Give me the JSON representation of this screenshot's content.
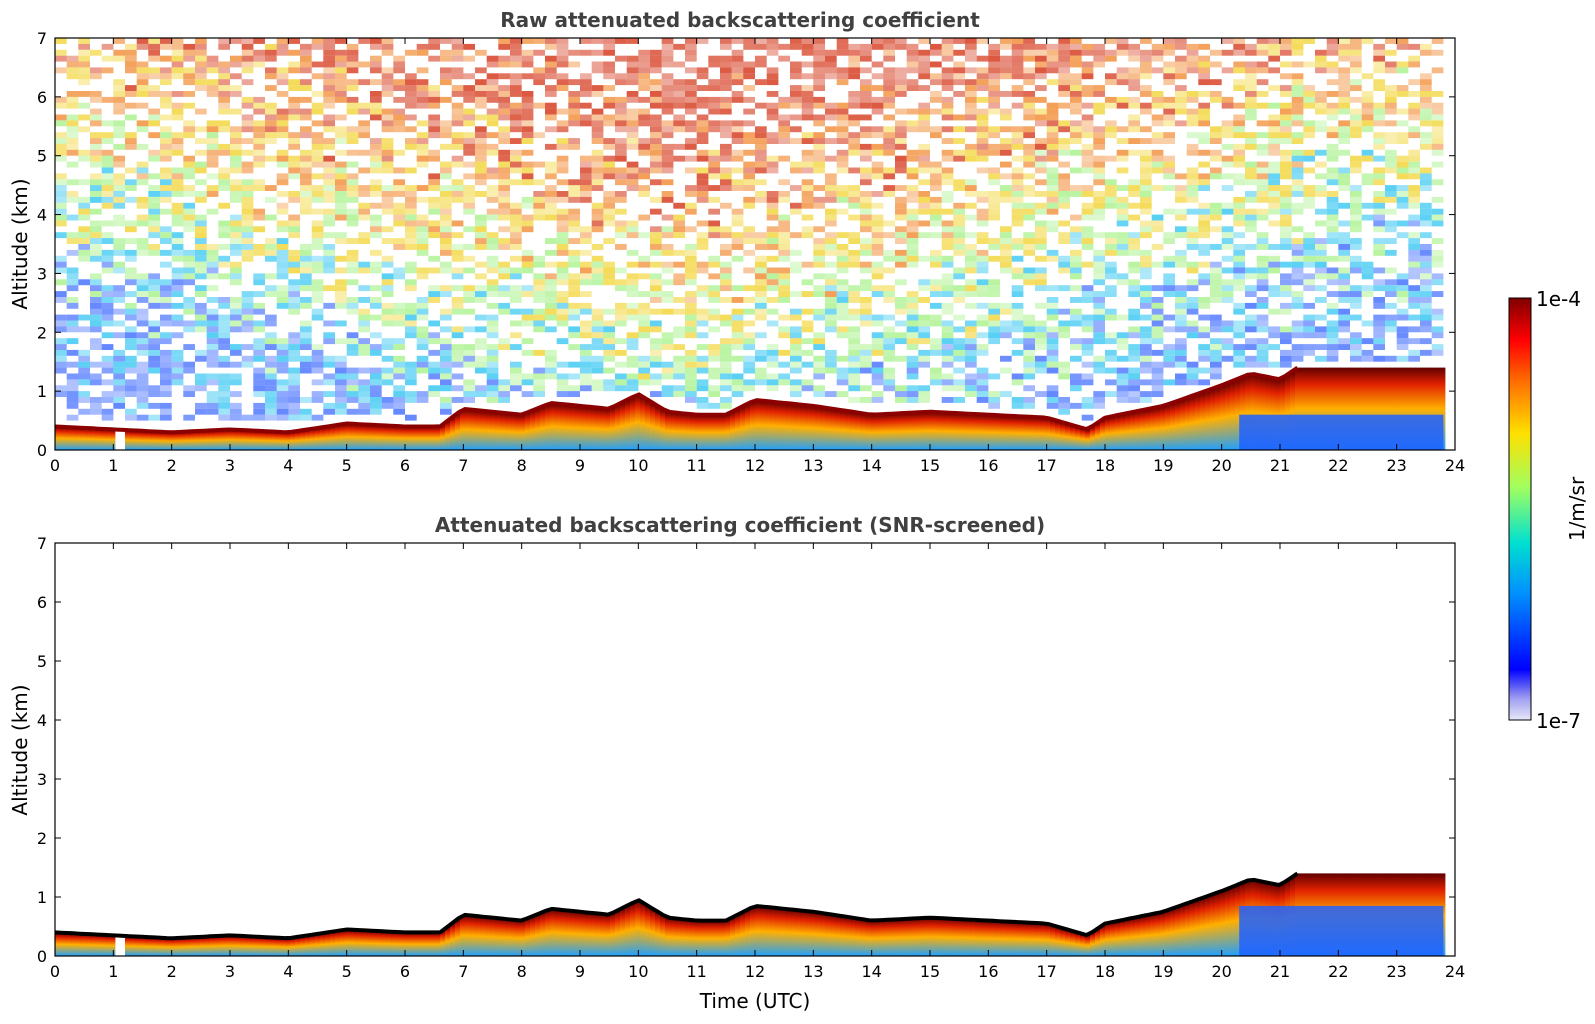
{
  "chart_data": [
    {
      "type": "heatmap",
      "title": "Raw attenuated backscattering coefficient",
      "xlabel": "",
      "ylabel": "Altitude (km)",
      "xlim": [
        0,
        24
      ],
      "ylim": [
        0,
        7
      ],
      "xticks": [
        "0",
        "1",
        "2",
        "3",
        "4",
        "5",
        "6",
        "7",
        "8",
        "9",
        "10",
        "11",
        "12",
        "13",
        "14",
        "15",
        "16",
        "17",
        "18",
        "19",
        "20",
        "21",
        "22",
        "23",
        "24"
      ],
      "yticks": [
        "0",
        "1",
        "2",
        "3",
        "4",
        "5",
        "6",
        "7"
      ],
      "boundary_layer_top_km": {
        "time_utc": [
          0,
          1,
          2,
          3,
          4,
          5,
          6,
          6.6,
          7,
          8,
          8.5,
          9,
          9.5,
          10,
          10.5,
          11,
          11.5,
          12,
          13,
          14,
          15,
          16,
          17,
          17.7,
          18,
          19,
          20,
          20.5,
          21,
          21.3
        ],
        "altitude_km": [
          0.4,
          0.35,
          0.3,
          0.35,
          0.3,
          0.45,
          0.4,
          0.4,
          0.7,
          0.6,
          0.8,
          0.75,
          0.7,
          0.95,
          0.65,
          0.6,
          0.6,
          0.85,
          0.75,
          0.6,
          0.65,
          0.6,
          0.55,
          0.35,
          0.55,
          0.75,
          1.1,
          1.3,
          1.2,
          1.4
        ]
      }
    },
    {
      "type": "heatmap",
      "title": "Attenuated backscattering coefficient (SNR-screened)",
      "xlabel": "Time (UTC)",
      "ylabel": "Altitude (km)",
      "xlim": [
        0,
        24
      ],
      "ylim": [
        0,
        7
      ],
      "xticks": [
        "0",
        "1",
        "2",
        "3",
        "4",
        "5",
        "6",
        "7",
        "8",
        "9",
        "10",
        "11",
        "12",
        "13",
        "14",
        "15",
        "16",
        "17",
        "18",
        "19",
        "20",
        "21",
        "22",
        "23",
        "24"
      ],
      "yticks": [
        "0",
        "1",
        "2",
        "3",
        "4",
        "5",
        "6",
        "7"
      ],
      "boundary_layer_top_km": {
        "time_utc": [
          0,
          1,
          2,
          3,
          4,
          5,
          6,
          6.6,
          7,
          8,
          8.5,
          9,
          9.5,
          10,
          10.5,
          11,
          11.5,
          12,
          13,
          14,
          15,
          16,
          17,
          17.7,
          18,
          19,
          20,
          20.5,
          21,
          21.3
        ],
        "altitude_km": [
          0.4,
          0.35,
          0.3,
          0.35,
          0.3,
          0.45,
          0.4,
          0.4,
          0.7,
          0.6,
          0.8,
          0.75,
          0.7,
          0.95,
          0.65,
          0.6,
          0.6,
          0.85,
          0.75,
          0.6,
          0.65,
          0.6,
          0.55,
          0.35,
          0.55,
          0.75,
          1.1,
          1.3,
          1.2,
          1.4
        ]
      }
    }
  ],
  "colorbar": {
    "label": "1/m/sr",
    "max_label": "1e-4",
    "min_label": "1e-7",
    "scale": "log",
    "colormap": [
      "#e8e8f8",
      "#0000ff",
      "#00aaff",
      "#00e6c8",
      "#c8ff00",
      "#ffd200",
      "#ff6400",
      "#ff0000",
      "#800000"
    ]
  }
}
